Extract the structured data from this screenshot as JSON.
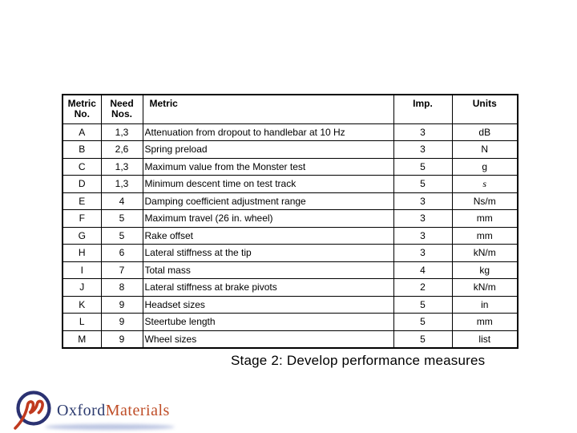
{
  "table": {
    "headers": [
      "Metric\nNo.",
      "Need\nNos.",
      "Metric",
      "Imp.",
      "Units"
    ],
    "rows": [
      {
        "no": "A",
        "needs": "1,3",
        "metric": "Attenuation from dropout to handlebar at 10 Hz",
        "imp": "3",
        "units": "dB"
      },
      {
        "no": "B",
        "needs": "2,6",
        "metric": "Spring preload",
        "imp": "3",
        "units": "N"
      },
      {
        "no": "C",
        "needs": "1,3",
        "metric": "Maximum value from the Monster test",
        "imp": "5",
        "units": "g"
      },
      {
        "no": "D",
        "needs": "1,3",
        "metric": "Minimum descent time on test track",
        "imp": "5",
        "units": "s",
        "units_italic": true
      },
      {
        "no": "E",
        "needs": "4",
        "metric": "Damping coefficient adjustment range",
        "imp": "3",
        "units": "Ns/m"
      },
      {
        "no": "F",
        "needs": "5",
        "metric": "Maximum travel (26 in. wheel)",
        "imp": "3",
        "units": "mm"
      },
      {
        "no": "G",
        "needs": "5",
        "metric": "Rake offset",
        "imp": "3",
        "units": "mm"
      },
      {
        "no": "H",
        "needs": "6",
        "metric": "Lateral stiffness at the tip",
        "imp": "3",
        "units": "kN/m"
      },
      {
        "no": "I",
        "needs": "7",
        "metric": "Total mass",
        "imp": "4",
        "units": "kg"
      },
      {
        "no": "J",
        "needs": "8",
        "metric": "Lateral stiffness at brake pivots",
        "imp": "2",
        "units": "kN/m"
      },
      {
        "no": "K",
        "needs": "9",
        "metric": "Headset sizes",
        "imp": "5",
        "units": "in"
      },
      {
        "no": "L",
        "needs": "9",
        "metric": "Steertube length",
        "imp": "5",
        "units": "mm"
      },
      {
        "no": "M",
        "needs": "9",
        "metric": "Wheel sizes",
        "imp": "5",
        "units": "list"
      }
    ]
  },
  "caption": "Stage 2: Develop performance measures",
  "logo": {
    "primary": "Oxford",
    "secondary": "Materials"
  },
  "colors": {
    "logo_navy": "#2b3272",
    "logo_red": "#c03a1f",
    "swoosh_blue": "#a9b5da",
    "table_border": "#000000"
  }
}
